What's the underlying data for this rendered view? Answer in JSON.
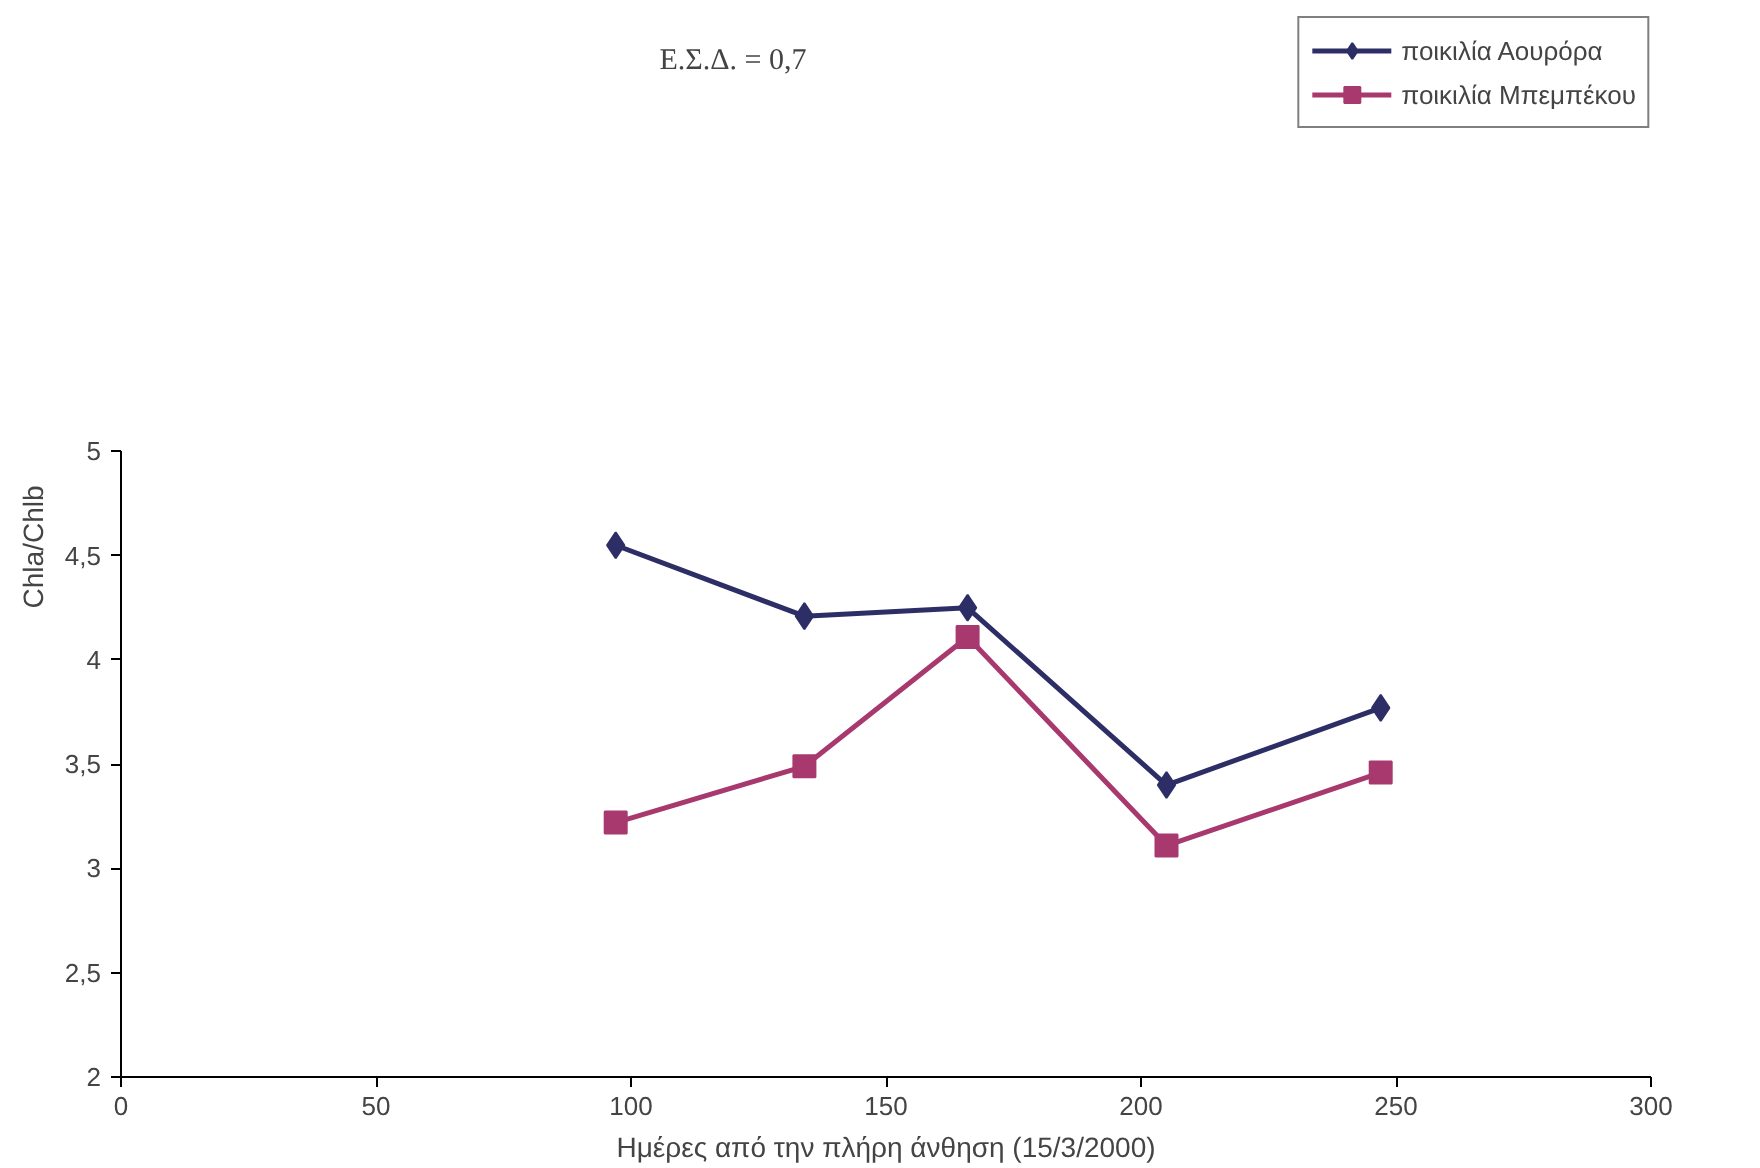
{
  "chart_data": {
    "type": "line",
    "xlabel": "Ημέρες από την πλήρη άνθηση (15/3/2000)",
    "ylabel": "Chla/Chlb",
    "annotations": [
      "Ε.Σ.Δ. = 0,7"
    ],
    "x": [
      97,
      134,
      166,
      205,
      247
    ],
    "series": [
      {
        "name": "ποικιλία Αουρόρα",
        "color": "#2e2e66",
        "marker": "diamond",
        "values": [
          4.55,
          4.21,
          4.25,
          3.4,
          3.77
        ]
      },
      {
        "name": "ποικιλία Μπεμπέκου",
        "color": "#a8396e",
        "marker": "square",
        "values": [
          3.22,
          3.49,
          4.11,
          3.11,
          3.46
        ]
      }
    ],
    "xlim": [
      0,
      300
    ],
    "xticks": [
      0,
      50,
      100,
      150,
      200,
      250,
      300
    ],
    "ylim": [
      2,
      5
    ],
    "yticks": [
      2,
      {
        "value": 2.5,
        "label": "2,5"
      },
      3,
      {
        "value": 3.5,
        "label": "3,5"
      },
      4,
      {
        "value": 4.5,
        "label": "4,5"
      },
      5
    ],
    "grid": false,
    "legend": "top right"
  }
}
